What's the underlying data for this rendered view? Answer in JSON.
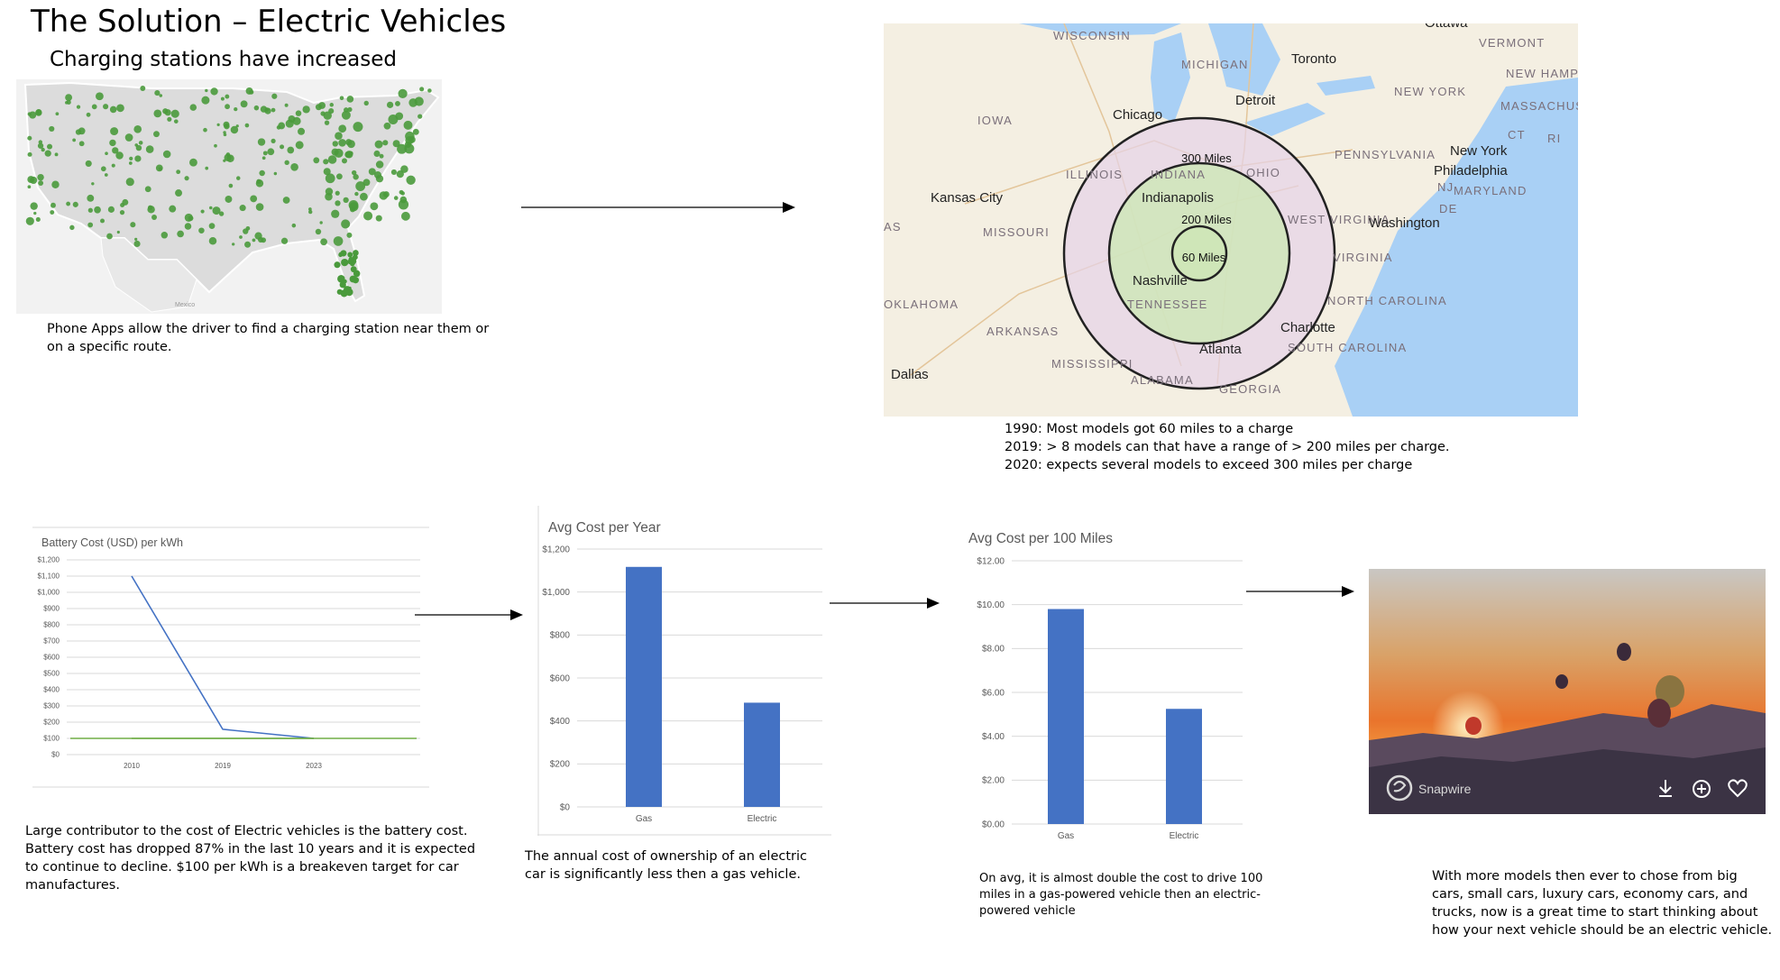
{
  "header": {
    "title": "The Solution – Electric Vehicles",
    "subtitle": "Charging stations have increased"
  },
  "station_map": {
    "labels": [
      "Mexico"
    ],
    "caption_lines": [
      "Phone Apps allow the driver to find a charging station near them or",
      "on a specific route."
    ]
  },
  "range_map": {
    "place_labels": {
      "wisconsin": "WISCONSIN",
      "michigan": "MICHIGAN",
      "toronto": "Toronto",
      "ottawa": "Ottawa",
      "vermont": "VERMONT",
      "new_hampshire": "NEW\nHAMPSHIRE",
      "massachusetts": "MASSACHUSETTS",
      "new_york_state": "NEW YORK",
      "iowa": "IOWA",
      "chicago": "Chicago",
      "detroit": "Detroit",
      "ct": "CT",
      "ri": "RI",
      "illinois": "ILLINOIS",
      "indiana": "INDIANA",
      "ohio": "OHIO",
      "pennsylvania": "PENNSYLVANIA",
      "new_york_city": "New York",
      "philadelphia": "Philadelphia",
      "nj": "NJ",
      "maryland": "MARYLAND",
      "de": "DE",
      "kansas_city": "Kansas City",
      "indianapolis": "Indianapolis",
      "west_virginia": "WEST\nVIRGINIA",
      "washington": "Washington",
      "missouri": "MISSOURI",
      "virginia": "VIRGINIA",
      "nashville": "Nashville",
      "tennessee": "TENNESSEE",
      "north_carolina": "NORTH\nCAROLINA",
      "oklahoma": "OKLAHOMA",
      "arkansas": "ARKANSAS",
      "charlotte": "Charlotte",
      "atlanta": "Atlanta",
      "south_carolina": "SOUTH\nCAROLINA",
      "mississippi": "MISSISSIPPI",
      "alabama": "ALABAMA",
      "dallas": "Dallas",
      "georgia": "GEORGIA",
      "as_edge": "AS"
    },
    "range_labels": [
      "300 Miles",
      "200 Miles",
      "60 Miles"
    ],
    "caption_lines": [
      "1990: Most models got 60 miles to a charge",
      "2019: > 8 models can that have a range of > 200 miles per charge.",
      "2020: expects several models to exceed 300 miles per charge"
    ]
  },
  "chart_data": [
    {
      "type": "line",
      "title": "Battery Cost (USD) per kWh",
      "x": [
        "2010",
        "2019",
        "2023"
      ],
      "ylim": [
        0,
        1200
      ],
      "yticks": [
        "$0",
        "$100",
        "$200",
        "$300",
        "$400",
        "$500",
        "$600",
        "$700",
        "$800",
        "$900",
        "$1,000",
        "$1,100",
        "$1,200"
      ],
      "series": [
        {
          "values": [
            1100,
            156,
            100
          ],
          "color": "#4472c4"
        },
        {
          "values": [
            100,
            100,
            100
          ],
          "color": "#70ad47"
        }
      ],
      "grid": true,
      "caption_lines": [
        "Large contributor to the cost of Electric vehicles is the battery cost.",
        "Battery cost has dropped 87% in the last 10 years and it is expected",
        "to continue to decline.  $100 per kWh is a breakeven target for car",
        "manufactures."
      ]
    },
    {
      "type": "bar",
      "title": "Avg Cost per Year",
      "categories": [
        "Gas",
        "Electric"
      ],
      "values": [
        1117,
        485
      ],
      "ylim": [
        0,
        1200
      ],
      "yticks": [
        "$0",
        "$200",
        "$400",
        "$600",
        "$800",
        "$1,000",
        "$1,200"
      ],
      "color": "#4472c4",
      "grid": true,
      "caption_lines": [
        "The annual cost of ownership of an electric",
        "car is significantly less then a gas vehicle."
      ]
    },
    {
      "type": "bar",
      "title": "Avg Cost per 100 Miles",
      "categories": [
        "Gas",
        "Electric"
      ],
      "values": [
        9.8,
        5.25
      ],
      "ylim": [
        0,
        12
      ],
      "yticks": [
        "$0.00",
        "$2.00",
        "$4.00",
        "$6.00",
        "$8.00",
        "$10.00",
        "$12.00"
      ],
      "color": "#4472c4",
      "grid": true,
      "caption_lines": [
        "On avg, it is almost double the cost to drive 100",
        "miles in a gas-powered vehicle then an electric-",
        "powered vehicle"
      ]
    }
  ],
  "photo": {
    "brand_label": "Snapwire",
    "icons": [
      "snapwire-logo-icon",
      "download-icon",
      "add-circle-icon",
      "heart-icon"
    ],
    "caption_lines": [
      "With more models then ever to chose from big",
      "cars, small cars, luxury cars, economy  cars, and",
      "trucks, now is a great time to start thinking about",
      "how your next vehicle should be an electric vehicle."
    ]
  },
  "colors": {
    "bar": "#4472c4",
    "line_blue": "#4472c4",
    "line_green": "#70ad47",
    "dots": "#4a9a3c",
    "lake": "#a9d0f5"
  }
}
